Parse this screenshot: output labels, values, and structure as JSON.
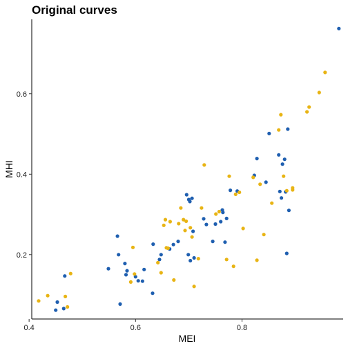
{
  "chart_data": {
    "type": "scatter",
    "title": "Original curves",
    "xlabel": "MEI",
    "ylabel": "MHI",
    "xlim": [
      0.405,
      0.99
    ],
    "ylim": [
      0.04,
      0.785
    ],
    "x_ticks": [
      0.4,
      0.6,
      0.8
    ],
    "x_tick_labels": [
      "0.4",
      "0.6",
      "0.8"
    ],
    "y_ticks": [
      0.2,
      0.4,
      0.6
    ],
    "y_tick_labels": [
      "0.2",
      "0.4",
      "0.6"
    ],
    "grid": false,
    "legend": "none",
    "series": [
      {
        "color": "#1f5fb0",
        "points": [
          [
            0.45,
            0.062
          ],
          [
            0.453,
            0.082
          ],
          [
            0.465,
            0.066
          ],
          [
            0.467,
            0.147
          ],
          [
            0.549,
            0.165
          ],
          [
            0.566,
            0.246
          ],
          [
            0.568,
            0.2
          ],
          [
            0.571,
            0.077
          ],
          [
            0.58,
            0.178
          ],
          [
            0.582,
            0.15
          ],
          [
            0.584,
            0.16
          ],
          [
            0.6,
            0.145
          ],
          [
            0.605,
            0.135
          ],
          [
            0.613,
            0.134
          ],
          [
            0.616,
            0.163
          ],
          [
            0.632,
            0.104
          ],
          [
            0.633,
            0.226
          ],
          [
            0.645,
            0.188
          ],
          [
            0.648,
            0.2
          ],
          [
            0.664,
            0.214
          ],
          [
            0.671,
            0.225
          ],
          [
            0.68,
            0.233
          ],
          [
            0.696,
            0.349
          ],
          [
            0.7,
            0.337
          ],
          [
            0.702,
            0.332
          ],
          [
            0.706,
            0.34
          ],
          [
            0.699,
            0.2
          ],
          [
            0.703,
            0.185
          ],
          [
            0.71,
            0.192
          ],
          [
            0.708,
            0.258
          ],
          [
            0.728,
            0.289
          ],
          [
            0.733,
            0.275
          ],
          [
            0.745,
            0.233
          ],
          [
            0.75,
            0.276
          ],
          [
            0.76,
            0.282
          ],
          [
            0.763,
            0.311
          ],
          [
            0.764,
            0.305
          ],
          [
            0.768,
            0.231
          ],
          [
            0.771,
            0.29
          ],
          [
            0.778,
            0.36
          ],
          [
            0.791,
            0.358
          ],
          [
            0.823,
            0.397
          ],
          [
            0.828,
            0.439
          ],
          [
            0.845,
            0.38
          ],
          [
            0.851,
            0.501
          ],
          [
            0.869,
            0.448
          ],
          [
            0.871,
            0.357
          ],
          [
            0.874,
            0.341
          ],
          [
            0.876,
            0.425
          ],
          [
            0.88,
            0.437
          ],
          [
            0.882,
            0.356
          ],
          [
            0.884,
            0.203
          ],
          [
            0.888,
            0.31
          ],
          [
            0.886,
            0.512
          ],
          [
            0.982,
            0.762
          ]
        ]
      },
      {
        "color": "#e8b414",
        "points": [
          [
            0.418,
            0.085
          ],
          [
            0.435,
            0.098
          ],
          [
            0.468,
            0.096
          ],
          [
            0.472,
            0.07
          ],
          [
            0.478,
            0.153
          ],
          [
            0.591,
            0.132
          ],
          [
            0.595,
            0.218
          ],
          [
            0.598,
            0.152
          ],
          [
            0.642,
            0.18
          ],
          [
            0.648,
            0.155
          ],
          [
            0.653,
            0.273
          ],
          [
            0.656,
            0.287
          ],
          [
            0.658,
            0.217
          ],
          [
            0.661,
            0.216
          ],
          [
            0.665,
            0.282
          ],
          [
            0.672,
            0.137
          ],
          [
            0.681,
            0.277
          ],
          [
            0.685,
            0.316
          ],
          [
            0.69,
            0.287
          ],
          [
            0.693,
            0.26
          ],
          [
            0.695,
            0.283
          ],
          [
            0.703,
            0.267
          ],
          [
            0.706,
            0.244
          ],
          [
            0.71,
            0.121
          ],
          [
            0.718,
            0.19
          ],
          [
            0.724,
            0.316
          ],
          [
            0.729,
            0.423
          ],
          [
            0.751,
            0.301
          ],
          [
            0.757,
            0.307
          ],
          [
            0.771,
            0.188
          ],
          [
            0.776,
            0.395
          ],
          [
            0.784,
            0.171
          ],
          [
            0.788,
            0.35
          ],
          [
            0.795,
            0.355
          ],
          [
            0.802,
            0.265
          ],
          [
            0.821,
            0.392
          ],
          [
            0.828,
            0.186
          ],
          [
            0.834,
            0.375
          ],
          [
            0.841,
            0.25
          ],
          [
            0.856,
            0.328
          ],
          [
            0.869,
            0.51
          ],
          [
            0.873,
            0.548
          ],
          [
            0.878,
            0.395
          ],
          [
            0.884,
            0.359
          ],
          [
            0.895,
            0.366
          ],
          [
            0.895,
            0.361
          ],
          [
            0.922,
            0.555
          ],
          [
            0.926,
            0.567
          ],
          [
            0.945,
            0.603
          ],
          [
            0.956,
            0.653
          ]
        ]
      }
    ]
  }
}
